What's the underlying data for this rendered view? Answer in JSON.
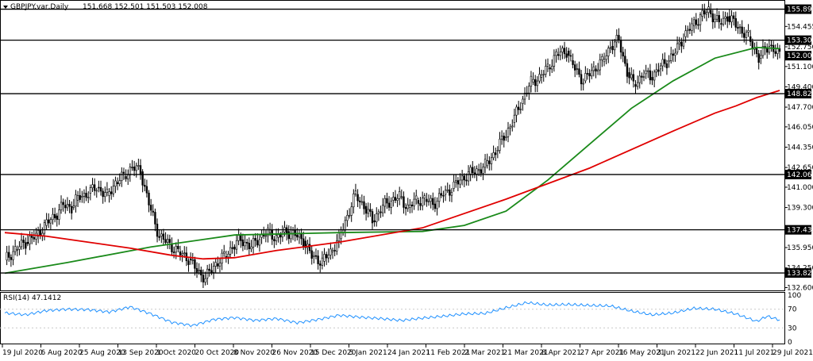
{
  "header": {
    "symbol": "GBPJPY.var,Daily",
    "ohlc": "151.668 152.501 151.503 152.008"
  },
  "rsi_header": "RSI(14) 47.1412",
  "colors": {
    "ma_fast": "#1a8a1a",
    "ma_slow": "#e00000",
    "rsi": "#1e90ff",
    "up_body": "#ffffff",
    "down_body": "#000000"
  },
  "chart_data": [
    {
      "type": "candlestick",
      "title": "GBPJPY.var,Daily",
      "x_labels": [
        "19 Jul 2020",
        "6 Aug 2020",
        "25 Aug 2020",
        "13 Sep 2020",
        "1 Oct 2020",
        "20 Oct 2020",
        "8 Nov 2020",
        "26 Nov 2020",
        "15 Dec 2020",
        "5 Jan 2021",
        "24 Jan 2021",
        "11 Feb 2021",
        "2 Mar 2021",
        "21 Mar 2021",
        "8 Apr 2021",
        "27 Apr 2021",
        "16 May 2021",
        "3 Jun 2021",
        "22 Jun 2021",
        "11 Jul 2021",
        "29 Jul 2021"
      ],
      "y_ticks": [
        "155.898",
        "154.455",
        "152.750",
        "151.100",
        "149.400",
        "147.700",
        "146.050",
        "144.350",
        "142.650",
        "141.000",
        "139.300",
        "137.435",
        "135.950",
        "134.250",
        "132.600"
      ],
      "ylim": [
        132.3,
        156.6
      ],
      "levels": [
        155.898,
        153.304,
        148.828,
        142.063,
        137.435,
        133.823
      ],
      "level_labels": [
        "155.898",
        "153.304",
        "148.828",
        "142.063",
        "137.435",
        "133.823"
      ],
      "current_price_label": "152.008",
      "current_price": 152.008,
      "series": [
        {
          "kind": "ohlc_path",
          "x": [
            0,
            5,
            10,
            15,
            19,
            24,
            28,
            32,
            34,
            36,
            40,
            44,
            49,
            53,
            57,
            61,
            65,
            70,
            74,
            79,
            83,
            88,
            92,
            96,
            101,
            105,
            109,
            113,
            118,
            122,
            126,
            130,
            135,
            139,
            143,
            147,
            152,
            156,
            160,
            164,
            168,
            172,
            176,
            181,
            185,
            189,
            193,
            197,
            201,
            205,
            210,
            214,
            218,
            222,
            226,
            230,
            235,
            239,
            243,
            247,
            252,
            256,
            260,
            264,
            269,
            271,
            273,
            277,
            282,
            286,
            290,
            294,
            298,
            301,
            306,
            309,
            313,
            317,
            321,
            325,
            329,
            333,
            337,
            342,
            346,
            351,
            356,
            361,
            366,
            371
          ],
          "close": [
            134.9,
            135.8,
            136.4,
            136.9,
            137.8,
            138.6,
            139.5,
            139.3,
            139.9,
            140.2,
            140.5,
            141.0,
            140.3,
            141.4,
            141.9,
            142.7,
            142.3,
            139.0,
            136.9,
            136.2,
            135.6,
            135.0,
            134.0,
            133.4,
            134.6,
            135.2,
            136.0,
            136.6,
            136.0,
            136.8,
            137.2,
            136.8,
            137.3,
            137.0,
            136.5,
            135.2,
            134.8,
            135.6,
            136.7,
            138.6,
            140.4,
            139.4,
            138.2,
            139.4,
            139.9,
            140.2,
            139.3,
            139.9,
            140.0,
            139.6,
            140.4,
            140.9,
            141.6,
            142.1,
            142.4,
            142.8,
            144.0,
            145.2,
            146.4,
            148.0,
            149.8,
            150.2,
            151.0,
            152.1,
            152.4,
            151.6,
            150.9,
            149.9,
            150.9,
            151.5,
            152.8,
            153.3,
            150.6,
            149.6,
            150.5,
            150.2,
            150.9,
            151.5,
            152.3,
            153.6,
            154.5,
            155.3,
            155.8,
            154.7,
            155.3,
            154.4,
            153.6,
            151.8,
            152.9,
            152.0
          ],
          "high_offset": 0.5,
          "low_offset": 0.5
        },
        {
          "name": "MA fast",
          "kind": "line",
          "color_key": "ma_fast",
          "x": [
            0,
            30,
            70,
            110,
            135,
            160,
            200,
            220,
            240,
            260,
            280,
            300,
            320,
            340,
            360,
            371
          ],
          "y": [
            133.8,
            134.7,
            136.0,
            137.0,
            137.1,
            137.2,
            137.3,
            137.8,
            139.0,
            141.6,
            144.6,
            147.6,
            149.9,
            151.8,
            152.7,
            152.6
          ]
        },
        {
          "name": "MA slow",
          "kind": "line",
          "color_key": "ma_slow",
          "x": [
            0,
            20,
            40,
            60,
            80,
            95,
            110,
            130,
            160,
            200,
            240,
            280,
            320,
            340,
            350,
            360,
            371
          ],
          "y": [
            137.2,
            136.9,
            136.4,
            135.9,
            135.3,
            135.0,
            135.1,
            135.7,
            136.4,
            137.6,
            140.0,
            142.6,
            145.7,
            147.2,
            147.8,
            148.5,
            149.1
          ]
        }
      ]
    },
    {
      "type": "line",
      "title": "RSI(14) 47.1412",
      "ylim": [
        0,
        100
      ],
      "y_ticks": [
        "100",
        "70",
        "30",
        "0"
      ],
      "gridlines": [
        70,
        30
      ],
      "series": [
        {
          "name": "RSI(14)",
          "color_key": "rsi",
          "x": [
            0,
            10,
            20,
            30,
            40,
            50,
            60,
            70,
            80,
            90,
            100,
            110,
            120,
            130,
            140,
            150,
            160,
            170,
            180,
            190,
            200,
            210,
            220,
            230,
            240,
            250,
            260,
            270,
            280,
            290,
            300,
            310,
            320,
            330,
            340,
            350,
            360,
            365,
            371
          ],
          "y": [
            62,
            58,
            67,
            70,
            69,
            64,
            75,
            60,
            42,
            35,
            48,
            52,
            46,
            50,
            41,
            48,
            57,
            53,
            50,
            46,
            51,
            55,
            60,
            61,
            73,
            84,
            79,
            80,
            78,
            77,
            66,
            58,
            62,
            72,
            70,
            60,
            44,
            55,
            47
          ]
        }
      ]
    }
  ]
}
